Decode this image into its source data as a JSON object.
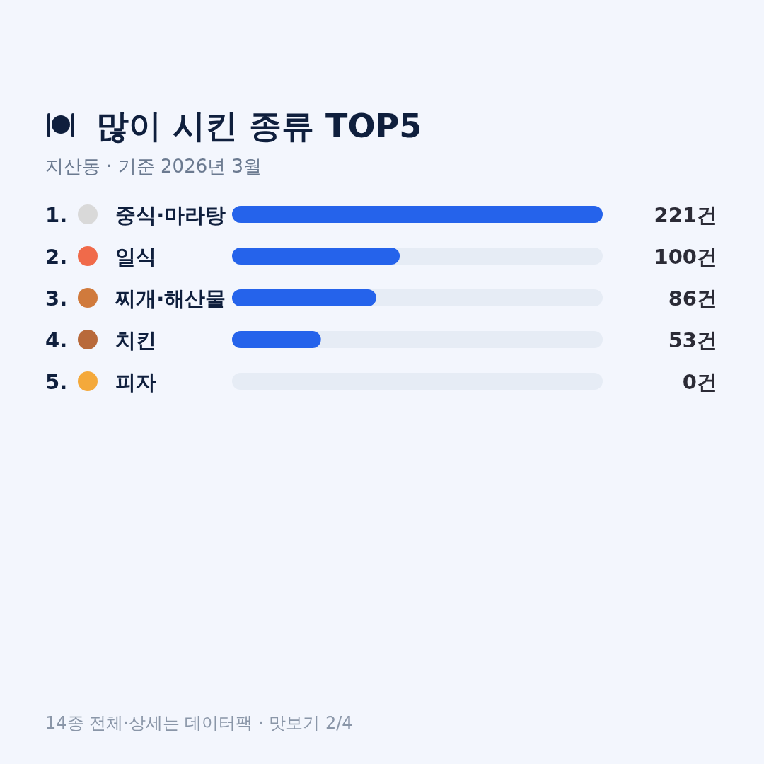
{
  "chart_data": {
    "type": "bar",
    "orientation": "horizontal",
    "title": "많이 시킨 종류 TOP5",
    "subtitle": "지산동 · 기준 2026년 3월",
    "categories": [
      "1. 중식·마라탕",
      "2. 일식",
      "3. 찌개·해산물",
      "4. 치킨",
      "5. 피자"
    ],
    "values": [
      221,
      100,
      86,
      53,
      0
    ],
    "value_labels": [
      "221건",
      "100건",
      "86건",
      "53건",
      "0건"
    ],
    "color": "#2563eb",
    "annotations": [
      "14종 전체·상세는 데이터팩 · 맛보기 2/4"
    ]
  }
}
